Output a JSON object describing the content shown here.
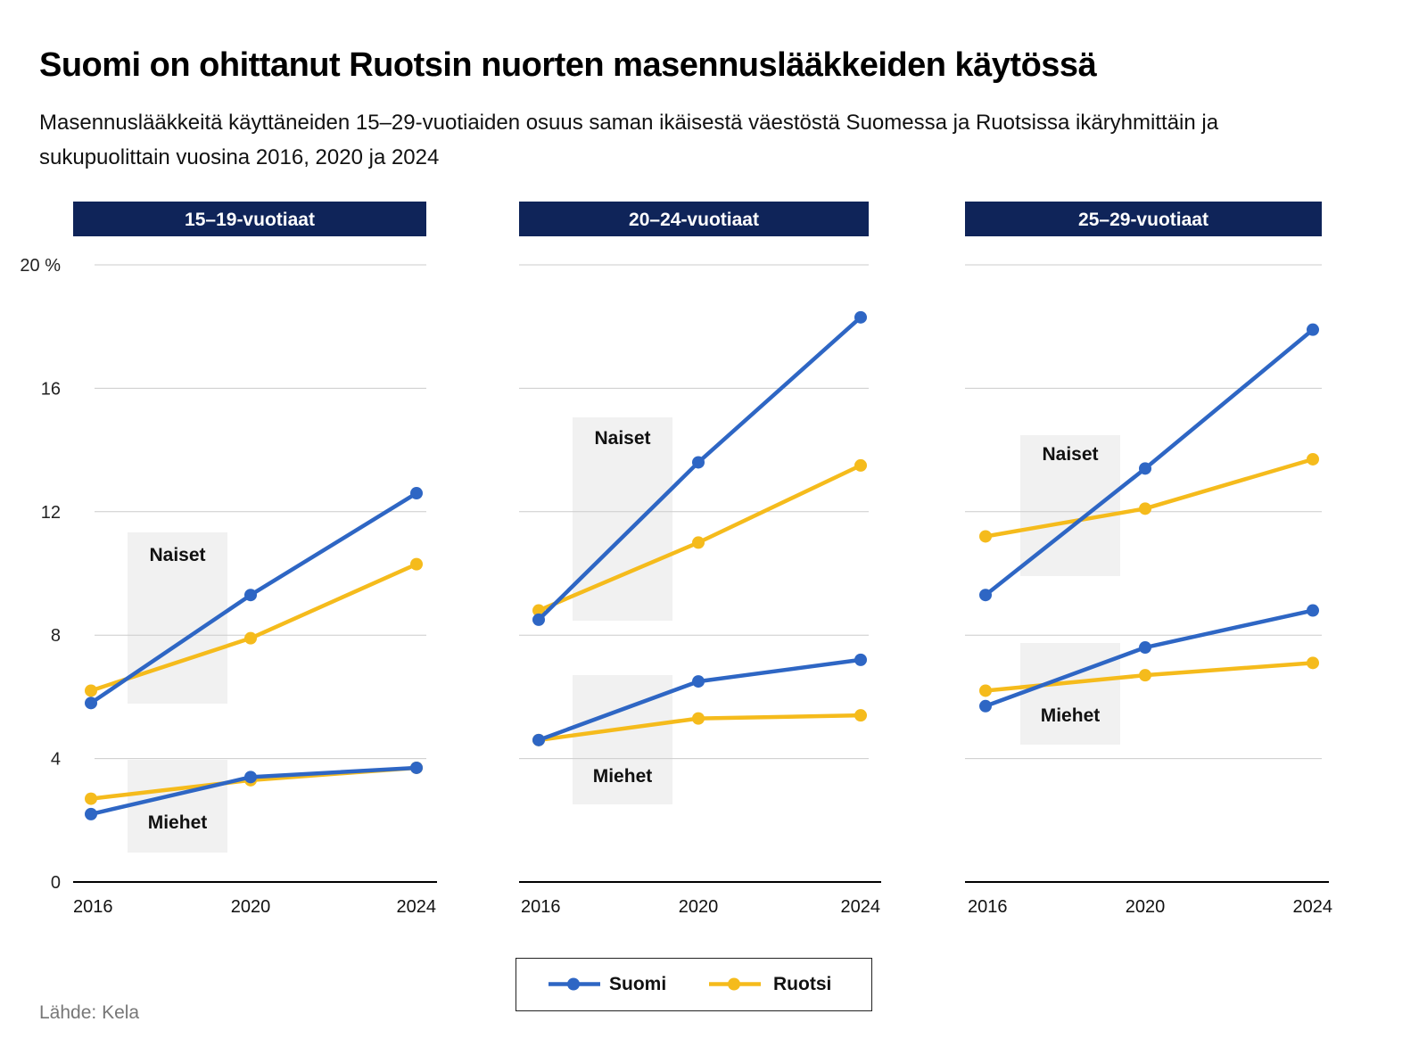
{
  "title": "Suomi on ohittanut Ruotsin nuorten masennuslääkkeiden käytössä",
  "subtitle": "Masennuslääkkeitä käyttäneiden 15–29-vuotiaiden osuus saman ikäisestä väestöstä Suomessa ja Ruotsissa ikäryhmittäin ja sukupuolittain vuosina 2016, 2020 ja 2024",
  "source": "Lähde: Kela",
  "colors": {
    "suomi": "#2e66c4",
    "ruotsi": "#f5bb1c",
    "panel_header": "#0f2459",
    "band": "#f1f1f1",
    "grid": "#cccccc"
  },
  "legend": {
    "items": [
      {
        "label": "Suomi",
        "series": "suomi"
      },
      {
        "label": "Ruotsi",
        "series": "ruotsi"
      }
    ]
  },
  "chart_data": {
    "type": "line",
    "x": [
      2016,
      2020,
      2024
    ],
    "ylim": [
      0,
      20
    ],
    "yticks": [
      0,
      4,
      8,
      12,
      16,
      20
    ],
    "ytick_labels": [
      "0",
      "4",
      "8",
      "12",
      "16",
      "20 %"
    ],
    "grid": true,
    "legend_position": "bottom-center",
    "panels": [
      {
        "title": "15–19-vuotiaat",
        "groups": [
          {
            "label": "Naiset",
            "suomi": [
              5.8,
              9.3,
              12.6
            ],
            "ruotsi": [
              6.2,
              7.9,
              10.3
            ]
          },
          {
            "label": "Miehet",
            "suomi": [
              2.2,
              3.4,
              3.7
            ],
            "ruotsi": [
              2.7,
              3.3,
              3.7
            ]
          }
        ]
      },
      {
        "title": "20–24-vuotiaat",
        "groups": [
          {
            "label": "Naiset",
            "suomi": [
              8.5,
              13.6,
              18.3
            ],
            "ruotsi": [
              8.8,
              11.0,
              13.5
            ]
          },
          {
            "label": "Miehet",
            "suomi": [
              4.6,
              6.5,
              7.2
            ],
            "ruotsi": [
              4.6,
              5.3,
              5.4
            ]
          }
        ]
      },
      {
        "title": "25–29-vuotiaat",
        "groups": [
          {
            "label": "Naiset",
            "suomi": [
              9.3,
              13.4,
              17.9
            ],
            "ruotsi": [
              11.2,
              12.1,
              13.7
            ]
          },
          {
            "label": "Miehet",
            "suomi": [
              5.7,
              7.6,
              8.8
            ],
            "ruotsi": [
              6.2,
              6.7,
              7.1
            ]
          }
        ]
      }
    ]
  }
}
